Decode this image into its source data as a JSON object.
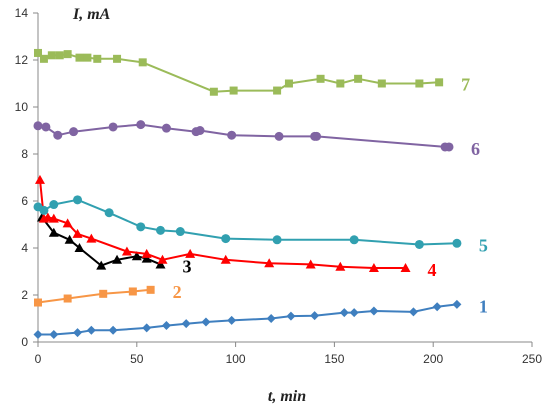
{
  "chart_data": {
    "type": "line",
    "title": "",
    "xlabel": "t, min",
    "ylabel": "I, mA",
    "xlim": [
      0,
      250
    ],
    "ylim": [
      0,
      14
    ],
    "xticks": [
      0,
      50,
      100,
      150,
      200,
      250
    ],
    "yticks": [
      0,
      2,
      4,
      6,
      8,
      10,
      12,
      14
    ],
    "grid": false,
    "legend": "series numbers placed at right end of each line",
    "series": [
      {
        "name": "1",
        "color": "#3f7fbf",
        "marker": "diamond",
        "x": [
          0,
          8,
          20,
          27,
          38,
          55,
          65,
          75,
          85,
          98,
          118,
          128,
          140,
          155,
          160,
          170,
          190,
          202,
          212
        ],
        "y": [
          0.32,
          0.32,
          0.4,
          0.5,
          0.5,
          0.6,
          0.7,
          0.78,
          0.85,
          0.92,
          1.0,
          1.1,
          1.12,
          1.25,
          1.25,
          1.32,
          1.28,
          1.5,
          1.6
        ]
      },
      {
        "name": "2",
        "color": "#f79646",
        "marker": "square",
        "x": [
          0,
          15,
          33,
          48,
          57
        ],
        "y": [
          1.68,
          1.85,
          2.05,
          2.15,
          2.22
        ]
      },
      {
        "name": "3",
        "color": "#000000",
        "marker": "triangle",
        "x": [
          2,
          8,
          16,
          21,
          32,
          40,
          50,
          55,
          62
        ],
        "y": [
          5.3,
          4.65,
          4.35,
          4.0,
          3.25,
          3.5,
          3.65,
          3.55,
          3.3
        ]
      },
      {
        "name": "4",
        "color": "#ff0000",
        "marker": "triangle",
        "x": [
          1,
          3,
          5,
          8,
          15,
          20,
          27,
          45,
          55,
          63,
          77,
          95,
          117,
          138,
          153,
          170,
          186
        ],
        "y": [
          6.9,
          5.25,
          5.3,
          5.25,
          5.05,
          4.6,
          4.4,
          3.85,
          3.75,
          3.5,
          3.75,
          3.5,
          3.35,
          3.3,
          3.2,
          3.15,
          3.15
        ]
      },
      {
        "name": "5",
        "color": "#31a0b0",
        "marker": "circle",
        "x": [
          0,
          3,
          8,
          20,
          36,
          52,
          62,
          72,
          95,
          121,
          160,
          193,
          212
        ],
        "y": [
          5.75,
          5.6,
          5.85,
          6.05,
          5.5,
          4.9,
          4.75,
          4.7,
          4.4,
          4.35,
          4.35,
          4.15,
          4.2
        ]
      },
      {
        "name": "6",
        "color": "#8064a2",
        "marker": "circle",
        "x": [
          0,
          4,
          10,
          18,
          38,
          52,
          65,
          80,
          82,
          98,
          122,
          140,
          141,
          206,
          208
        ],
        "y": [
          9.2,
          9.15,
          8.8,
          8.95,
          9.15,
          9.25,
          9.1,
          8.95,
          9.0,
          8.8,
          8.75,
          8.75,
          8.75,
          8.3,
          8.3
        ]
      },
      {
        "name": "7",
        "color": "#9bbb59",
        "marker": "square",
        "x": [
          0,
          3,
          7,
          11,
          15,
          21,
          25,
          30,
          40,
          53,
          89,
          99,
          121,
          127,
          143,
          153,
          162,
          174,
          193,
          203
        ],
        "y": [
          12.3,
          12.05,
          12.2,
          12.2,
          12.25,
          12.1,
          12.1,
          12.05,
          12.05,
          11.9,
          10.65,
          10.7,
          10.7,
          11.0,
          11.2,
          11.0,
          11.2,
          11.0,
          11.0,
          11.05
        ]
      }
    ]
  }
}
